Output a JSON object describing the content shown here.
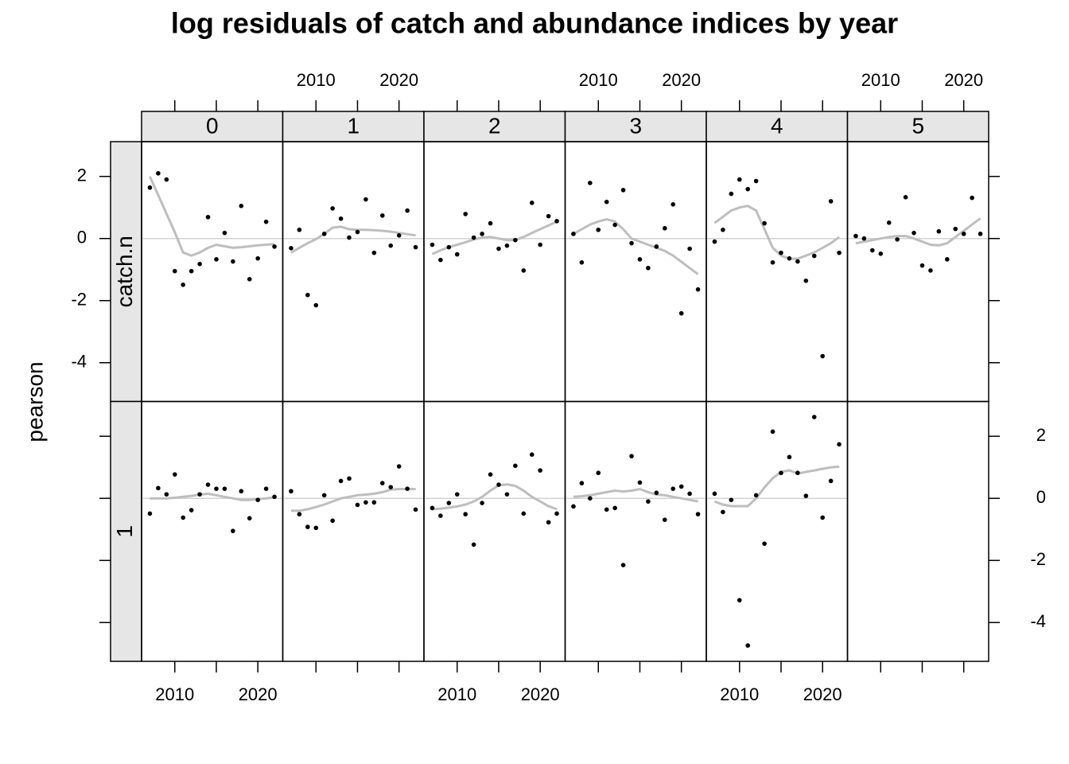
{
  "chart_data": {
    "type": "scatter",
    "title": "log residuals of catch and abundance indices by year",
    "ylabel": "pearson",
    "columns": [
      "0",
      "1",
      "2",
      "3",
      "4",
      "5"
    ],
    "rows": [
      "catch.n",
      "1"
    ],
    "x": [
      2007,
      2008,
      2009,
      2010,
      2011,
      2012,
      2013,
      2014,
      2015,
      2016,
      2017,
      2018,
      2019,
      2020,
      2021,
      2022
    ],
    "xlim": [
      2006,
      2023
    ],
    "xticks": [
      2010,
      2020
    ],
    "x_minor_ticks": [
      2015
    ],
    "ylim": [
      -5.25,
      3.12
    ],
    "yticks": [
      -4,
      -2,
      0,
      2
    ],
    "hline": 0,
    "point_color": "#000000",
    "smooth_color": "#bebebe",
    "hline_color": "#d3d3d3",
    "strip_color": "#e6e6e6",
    "panels": [
      [
        {
          "values": [
            1.64,
            2.1,
            1.9,
            -1.05,
            -1.49,
            -1.05,
            -0.82,
            0.69,
            -0.67,
            0.18,
            -0.74,
            1.05,
            -1.31,
            -0.64,
            0.54,
            -0.26
          ],
          "smooth": [
            2.0,
            1.4,
            0.8,
            0.2,
            -0.45,
            -0.55,
            -0.45,
            -0.3,
            -0.2,
            -0.25,
            -0.3,
            -0.28,
            -0.25,
            -0.22,
            -0.2,
            -0.18
          ]
        },
        {
          "values": [
            -0.31,
            0.28,
            -1.82,
            -2.15,
            0.15,
            0.97,
            0.64,
            0.03,
            0.21,
            1.26,
            -0.46,
            0.74,
            -0.23,
            0.1,
            0.9,
            -0.28
          ],
          "smooth": [
            -0.45,
            -0.3,
            -0.15,
            -0.02,
            0.15,
            0.35,
            0.38,
            0.3,
            0.28,
            0.28,
            0.27,
            0.25,
            0.22,
            0.18,
            0.14,
            0.1
          ]
        },
        {
          "values": [
            -0.2,
            -0.69,
            -0.28,
            -0.51,
            0.79,
            0.03,
            0.15,
            0.49,
            -0.33,
            -0.23,
            -0.05,
            -1.03,
            1.15,
            -0.2,
            0.72,
            0.56
          ],
          "smooth": [
            -0.5,
            -0.38,
            -0.28,
            -0.2,
            -0.12,
            -0.03,
            0.03,
            0.05,
            0.0,
            -0.05,
            -0.05,
            0.05,
            0.18,
            0.3,
            0.42,
            0.55
          ]
        },
        {
          "values": [
            0.15,
            -0.77,
            1.79,
            0.28,
            1.18,
            0.44,
            1.56,
            -0.15,
            -0.67,
            -0.95,
            -0.26,
            0.33,
            1.1,
            -2.41,
            -0.33,
            -1.64
          ],
          "smooth": [
            0.15,
            0.3,
            0.45,
            0.55,
            0.62,
            0.55,
            0.3,
            0.0,
            -0.1,
            -0.2,
            -0.3,
            -0.4,
            -0.55,
            -0.75,
            -0.95,
            -1.15
          ]
        },
        {
          "values": [
            -0.1,
            0.28,
            1.44,
            1.9,
            1.59,
            1.85,
            0.49,
            -0.77,
            -0.46,
            -0.64,
            -0.74,
            -1.36,
            -0.56,
            -3.79,
            1.2,
            -0.46
          ],
          "smooth": [
            0.5,
            0.7,
            0.9,
            1.0,
            1.05,
            0.9,
            0.3,
            -0.3,
            -0.55,
            -0.65,
            -0.65,
            -0.55,
            -0.45,
            -0.3,
            -0.15,
            0.05
          ]
        },
        {
          "values": [
            0.08,
            0.0,
            -0.38,
            -0.49,
            0.51,
            -0.03,
            1.33,
            0.18,
            -0.87,
            -1.03,
            0.23,
            -0.67,
            0.31,
            0.15,
            1.31,
            0.15
          ],
          "smooth": [
            -0.15,
            -0.1,
            -0.05,
            0.0,
            0.05,
            0.08,
            0.08,
            0.0,
            -0.1,
            -0.2,
            -0.22,
            -0.15,
            0.05,
            0.25,
            0.45,
            0.65
          ]
        }
      ],
      [
        {
          "values": [
            -0.49,
            0.33,
            0.13,
            0.77,
            -0.62,
            -0.38,
            0.13,
            0.44,
            0.31,
            0.31,
            -1.05,
            0.23,
            -0.64,
            -0.05,
            0.31,
            0.05
          ],
          "smooth": [
            0.0,
            0.0,
            0.0,
            0.02,
            0.05,
            0.08,
            0.12,
            0.15,
            0.1,
            0.05,
            0.0,
            -0.05,
            -0.05,
            -0.02,
            0.0,
            0.03
          ]
        },
        {
          "values": [
            0.23,
            -0.51,
            -0.92,
            -0.95,
            0.1,
            -0.72,
            0.56,
            0.64,
            -0.21,
            -0.13,
            -0.13,
            0.49,
            0.36,
            1.03,
            0.31,
            -0.36
          ],
          "smooth": [
            -0.4,
            -0.4,
            -0.35,
            -0.28,
            -0.2,
            -0.1,
            0.0,
            0.05,
            0.1,
            0.12,
            0.15,
            0.2,
            0.28,
            0.3,
            0.3,
            0.3
          ]
        },
        {
          "values": [
            -0.31,
            -0.56,
            -0.15,
            0.13,
            -0.51,
            -1.49,
            -0.15,
            0.77,
            0.44,
            0.13,
            1.05,
            -0.49,
            1.41,
            0.9,
            -0.77,
            -0.49
          ],
          "smooth": [
            -0.35,
            -0.33,
            -0.3,
            -0.26,
            -0.2,
            -0.1,
            0.05,
            0.25,
            0.42,
            0.45,
            0.4,
            0.25,
            0.05,
            -0.1,
            -0.25,
            -0.35
          ]
        },
        {
          "values": [
            -0.26,
            0.49,
            0.0,
            0.82,
            -0.36,
            -0.31,
            -2.15,
            1.36,
            0.51,
            -0.1,
            0.18,
            -0.69,
            0.31,
            0.38,
            0.15,
            -0.51
          ],
          "smooth": [
            0.05,
            0.07,
            0.1,
            0.15,
            0.2,
            0.25,
            0.22,
            0.25,
            0.3,
            0.2,
            0.12,
            0.1,
            0.05,
            0.0,
            -0.05,
            -0.1
          ]
        },
        {
          "values": [
            0.15,
            -0.44,
            -0.05,
            -3.28,
            -4.74,
            0.1,
            -1.46,
            2.15,
            0.82,
            1.33,
            0.82,
            0.08,
            2.62,
            -0.62,
            0.56,
            1.74
          ],
          "smooth": [
            -0.1,
            -0.2,
            -0.25,
            -0.25,
            -0.25,
            0.0,
            0.35,
            0.65,
            0.85,
            0.9,
            0.8,
            0.85,
            0.9,
            0.95,
            1.0,
            1.02
          ]
        }
      ]
    ]
  }
}
